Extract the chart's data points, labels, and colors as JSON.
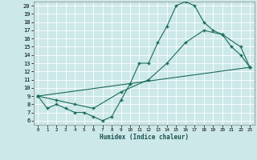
{
  "background_color": "#cce8e8",
  "grid_color": "#ffffff",
  "line_color": "#1a6b5a",
  "xlabel": "Humidex (Indice chaleur)",
  "xlim": [
    -0.5,
    23.5
  ],
  "ylim": [
    5.5,
    20.5
  ],
  "xticks": [
    0,
    1,
    2,
    3,
    4,
    5,
    6,
    7,
    8,
    9,
    10,
    11,
    12,
    13,
    14,
    15,
    16,
    17,
    18,
    19,
    20,
    21,
    22,
    23
  ],
  "yticks": [
    6,
    7,
    8,
    9,
    10,
    11,
    12,
    13,
    14,
    15,
    16,
    17,
    18,
    19,
    20
  ],
  "curve1_x": [
    0,
    1,
    2,
    3,
    4,
    5,
    6,
    7,
    8,
    9,
    10,
    11,
    12,
    13,
    14,
    15,
    16,
    17,
    18,
    19,
    20,
    21,
    22,
    23
  ],
  "curve1_y": [
    9,
    7.5,
    8,
    7.5,
    7,
    7,
    6.5,
    6,
    6.5,
    8.5,
    10.5,
    13,
    13,
    15.5,
    17.5,
    20,
    20.5,
    20,
    18,
    17,
    16.5,
    15,
    14,
    12.5
  ],
  "curve2_x": [
    0,
    2,
    4,
    6,
    9,
    12,
    14,
    16,
    18,
    20,
    22,
    23
  ],
  "curve2_y": [
    9,
    8.5,
    8,
    7.5,
    9.5,
    11,
    13,
    15.5,
    17,
    16.5,
    15,
    12.5
  ],
  "curve3_x": [
    0,
    23
  ],
  "curve3_y": [
    9,
    12.5
  ]
}
